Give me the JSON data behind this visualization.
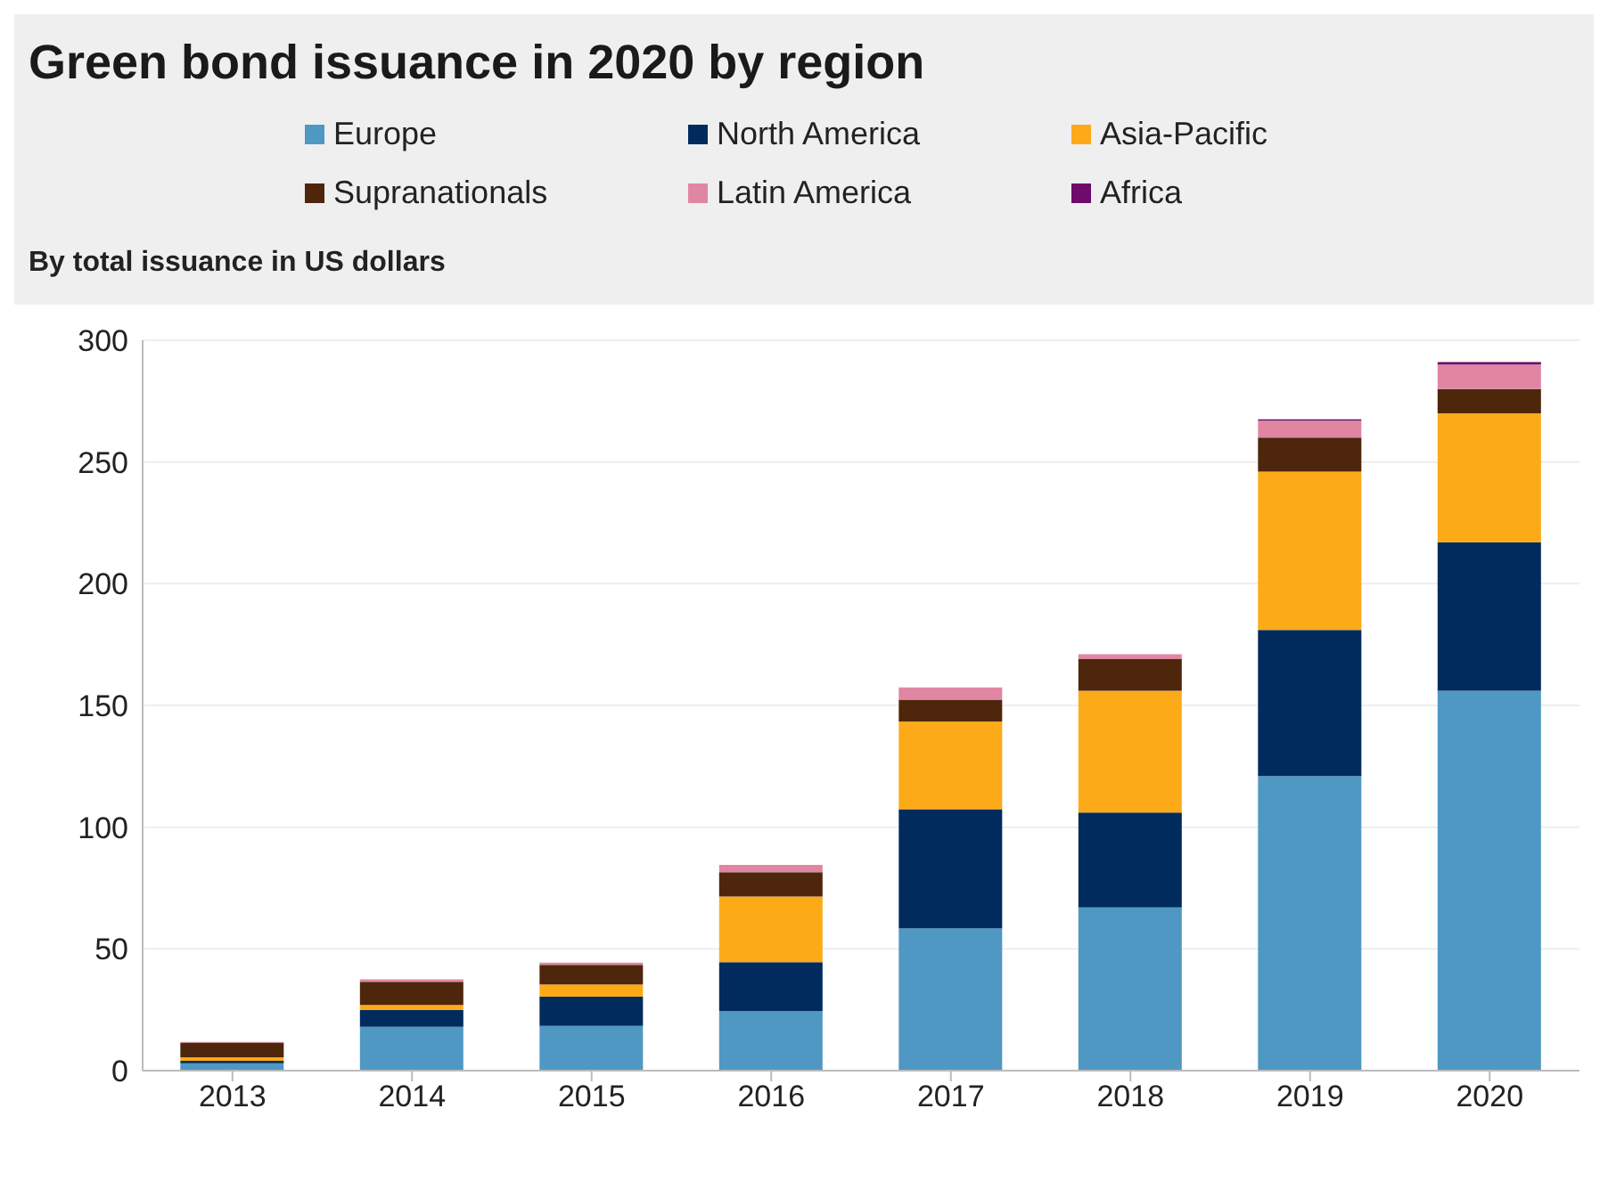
{
  "chart_data": {
    "type": "bar",
    "title": "Green bond issuance in 2020 by region",
    "subtitle": "By total issuance in US dollars",
    "categories": [
      "2013",
      "2014",
      "2015",
      "2016",
      "2017",
      "2018",
      "2019",
      "2020"
    ],
    "stacked": true,
    "series": [
      {
        "name": "Europe",
        "color": "#4f98c3",
        "values": [
          3,
          18,
          18.4,
          24.5,
          58.4,
          67,
          121,
          156
        ]
      },
      {
        "name": "North America",
        "color": "#002b5c",
        "values": [
          1,
          7,
          12,
          20,
          49,
          39,
          60,
          61
        ]
      },
      {
        "name": "Asia-Pacific",
        "color": "#fdaa19",
        "values": [
          1.5,
          2,
          5,
          27,
          36,
          50,
          65,
          53
        ]
      },
      {
        "name": "Supranationals",
        "color": "#4e260c",
        "values": [
          6,
          9.5,
          8,
          10,
          9,
          13,
          14,
          10
        ]
      },
      {
        "name": "Latin America",
        "color": "#e086a3",
        "values": [
          0.3,
          1,
          1,
          3,
          5,
          2,
          7,
          10
        ]
      },
      {
        "name": "Africa",
        "color": "#6e0b6b",
        "values": [
          0,
          0,
          0,
          0,
          0,
          0,
          0.5,
          1
        ]
      }
    ],
    "ylim": [
      0,
      300
    ],
    "yticks": [
      0,
      50,
      100,
      150,
      200,
      250,
      300
    ],
    "grid": "y",
    "legend": "top"
  }
}
